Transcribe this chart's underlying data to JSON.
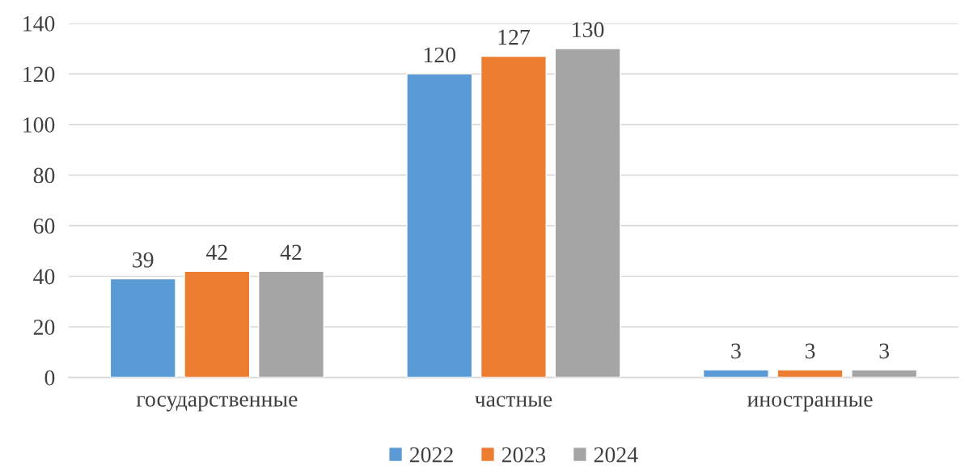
{
  "chart_data": {
    "type": "bar",
    "categories": [
      "государственные",
      "частные",
      "иностранные"
    ],
    "series": [
      {
        "name": "2022",
        "color": "#5b9bd5",
        "values": [
          39,
          120,
          3
        ]
      },
      {
        "name": "2023",
        "color": "#ed7d31",
        "values": [
          42,
          127,
          3
        ]
      },
      {
        "name": "2024",
        "color": "#a5a5a5",
        "values": [
          42,
          130,
          3
        ]
      }
    ],
    "ylim": [
      0,
      140
    ],
    "yticks": [
      0,
      20,
      40,
      60,
      80,
      100,
      120,
      140
    ],
    "grid": "y",
    "legend": "bottom",
    "data_labels": true
  }
}
